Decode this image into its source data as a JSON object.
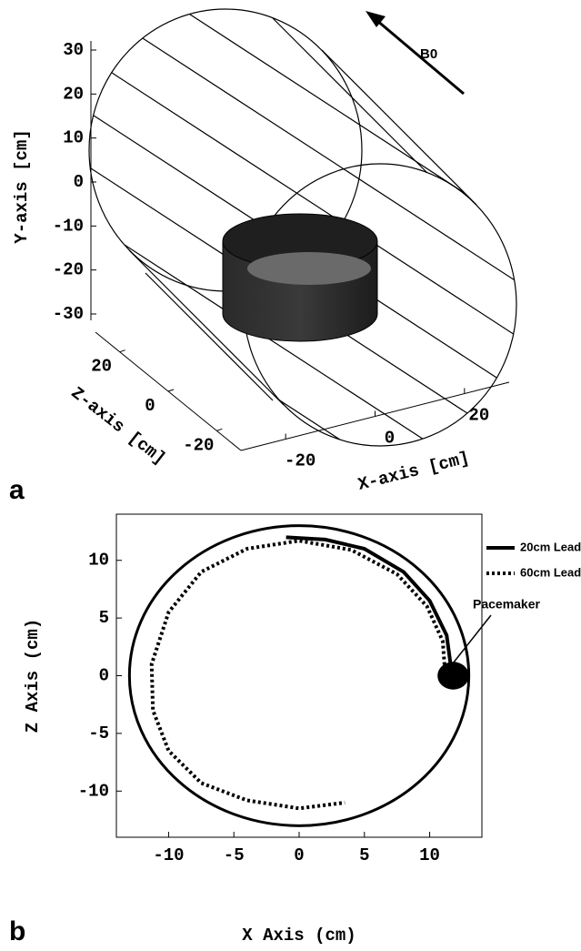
{
  "chart_data": [
    {
      "type": "3d",
      "panel_label": "a",
      "annotation": "B0",
      "xlabel": "X-axis [cm]",
      "ylabel": "Y-axis [cm]",
      "zlabel": "Z-axis [cm]",
      "xlim": [
        -30,
        30
      ],
      "ylim": [
        -30,
        30
      ],
      "zlim": [
        -30,
        30
      ],
      "xticks": [
        -20,
        0,
        20
      ],
      "yticks": [
        -30,
        -20,
        -10,
        0,
        10,
        20,
        30
      ],
      "zticks": [
        -20,
        0,
        20
      ]
    },
    {
      "type": "line",
      "panel_label": "b",
      "xlabel": "X Axis (cm)",
      "ylabel": "Z Axis (cm)",
      "xlim": [
        -14,
        14
      ],
      "ylim": [
        -14,
        14
      ],
      "xticks": [
        -10,
        -5,
        0,
        5,
        10
      ],
      "yticks": [
        -10,
        -5,
        0,
        5,
        10
      ],
      "legend": "upper right",
      "bore": {
        "cx": 0,
        "cy": 0,
        "r": 13
      },
      "pacemaker": {
        "label": "Pacemaker",
        "x": 11.8,
        "y": 0,
        "r": 1.2
      },
      "series": [
        {
          "name": "20cm Lead",
          "color": "#000000",
          "style": "solid",
          "x": [
            -1,
            2,
            5,
            8,
            10,
            11.3,
            11.6,
            11.8
          ],
          "values": [
            12,
            11.8,
            11,
            9,
            6.5,
            3.5,
            1,
            0
          ]
        },
        {
          "name": "60cm Lead",
          "color": "#000000",
          "style": "dotted",
          "x": [
            11.2,
            11,
            9.8,
            7.5,
            4,
            0,
            -4,
            -7.5,
            -10,
            -11.3,
            -11.2,
            -10,
            -7.5,
            -4,
            0,
            3.5
          ],
          "values": [
            0,
            3,
            6,
            8.8,
            10.9,
            11.7,
            11,
            9,
            5.5,
            1,
            -3,
            -6.5,
            -9.3,
            -10.8,
            -11.5,
            -11
          ]
        }
      ]
    }
  ]
}
